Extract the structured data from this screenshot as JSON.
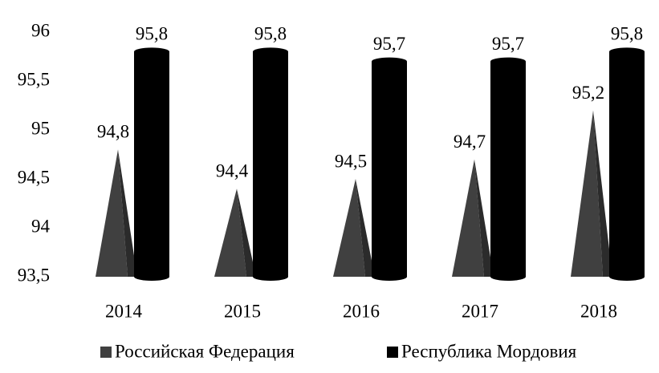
{
  "chart_data": {
    "type": "bar",
    "categories": [
      "2014",
      "2015",
      "2016",
      "2017",
      "2018"
    ],
    "series": [
      {
        "name": "Российская Федерация",
        "color": "#404040",
        "values": [
          94.8,
          94.4,
          94.5,
          94.7,
          95.2
        ],
        "value_labels": [
          "94,8",
          "94,4",
          "94,5",
          "94,7",
          "95,2"
        ]
      },
      {
        "name": "Республика Мордовия",
        "color": "#000000",
        "values": [
          95.8,
          95.8,
          95.7,
          95.7,
          95.8
        ],
        "value_labels": [
          "95,8",
          "95,8",
          "95,7",
          "95,7",
          "95,8"
        ]
      }
    ],
    "ylim": [
      93.5,
      96
    ],
    "yticks": [
      {
        "value": 93.5,
        "label": "93,5"
      },
      94,
      {
        "value": 94.5,
        "label": "94,5"
      },
      95,
      {
        "value": 95.5,
        "label": "95,5"
      },
      96
    ],
    "legend": "bottom"
  }
}
